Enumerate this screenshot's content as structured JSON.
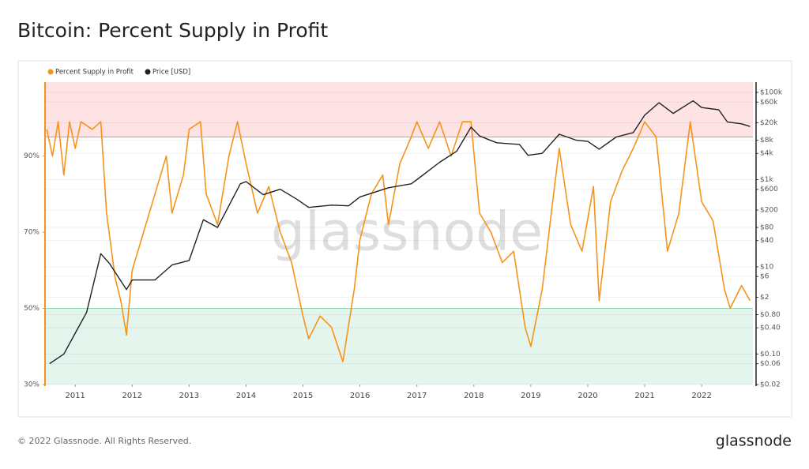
{
  "chart_data": {
    "type": "line",
    "title": "Bitcoin: Percent Supply in Profit",
    "footer": "© 2022 Glassnode. All Rights Reserved.",
    "brand": "glassnode",
    "watermark": "glassnode",
    "xlim": [
      2010.47,
      2022.9
    ],
    "xticks": [
      2011,
      2012,
      2013,
      2014,
      2015,
      2016,
      2017,
      2018,
      2019,
      2020,
      2021,
      2022
    ],
    "ylim": [
      30,
      109.4
    ],
    "yticks": [
      {
        "value": 30,
        "label": "30%"
      },
      {
        "value": 50,
        "label": "50%"
      },
      {
        "value": 70,
        "label": "70%"
      },
      {
        "value": 90,
        "label": "90%"
      }
    ],
    "y2lim": [
      0.02,
      172000
    ],
    "y2scale": "log",
    "y2ticks": [
      {
        "value": 0.02,
        "label": "$0.02"
      },
      {
        "value": 0.06,
        "label": "$0.06"
      },
      {
        "value": 0.1,
        "label": "$0.10"
      },
      {
        "value": 0.4,
        "label": "$0.40"
      },
      {
        "value": 0.8,
        "label": "$0.80"
      },
      {
        "value": 2,
        "label": "$2"
      },
      {
        "value": 6,
        "label": "$6"
      },
      {
        "value": 10,
        "label": "$10"
      },
      {
        "value": 40,
        "label": "$40"
      },
      {
        "value": 80,
        "label": "$80"
      },
      {
        "value": 200,
        "label": "$200"
      },
      {
        "value": 600,
        "label": "$600"
      },
      {
        "value": 1000,
        "label": "$1k"
      },
      {
        "value": 4000,
        "label": "$4k"
      },
      {
        "value": 8000,
        "label": "$8k"
      },
      {
        "value": 20000,
        "label": "$20k"
      },
      {
        "value": 60000,
        "label": "$60k"
      },
      {
        "value": 100000,
        "label": "$100k"
      }
    ],
    "bands": [
      {
        "from": 95,
        "to": 109.4,
        "color": "#fde3e3",
        "edge": "#f08a8a"
      },
      {
        "from": 30,
        "to": 50,
        "color": "#e3f5ec",
        "edge": "#8fd3b0"
      }
    ],
    "grid": true,
    "legend": "top-left",
    "series": [
      {
        "name": "Percent Supply in Profit",
        "color": "#f7931a",
        "x": [
          2010.5,
          2010.6,
          2010.7,
          2010.8,
          2010.9,
          2011.0,
          2011.1,
          2011.3,
          2011.45,
          2011.55,
          2011.7,
          2011.8,
          2011.9,
          2012.0,
          2012.2,
          2012.4,
          2012.6,
          2012.7,
          2012.9,
          2013.0,
          2013.2,
          2013.3,
          2013.5,
          2013.7,
          2013.85,
          2014.0,
          2014.2,
          2014.4,
          2014.6,
          2014.8,
          2015.0,
          2015.1,
          2015.3,
          2015.5,
          2015.7,
          2015.9,
          2016.0,
          2016.2,
          2016.4,
          2016.5,
          2016.7,
          2016.9,
          2017.0,
          2017.2,
          2017.4,
          2017.6,
          2017.8,
          2017.95,
          2018.1,
          2018.3,
          2018.5,
          2018.7,
          2018.9,
          2019.0,
          2019.2,
          2019.4,
          2019.5,
          2019.7,
          2019.9,
          2020.1,
          2020.2,
          2020.4,
          2020.6,
          2020.8,
          2021.0,
          2021.2,
          2021.4,
          2021.6,
          2021.8,
          2022.0,
          2022.2,
          2022.4,
          2022.5,
          2022.7,
          2022.85
        ],
        "values": [
          97,
          90,
          99,
          85,
          99,
          92,
          99,
          97,
          99,
          75,
          58,
          52,
          43,
          60,
          70,
          80,
          90,
          75,
          85,
          97,
          99,
          80,
          72,
          90,
          99,
          88,
          75,
          82,
          70,
          62,
          48,
          42,
          48,
          45,
          36,
          55,
          68,
          80,
          85,
          72,
          88,
          95,
          99,
          92,
          99,
          90,
          99,
          99,
          75,
          70,
          62,
          65,
          45,
          40,
          55,
          80,
          92,
          72,
          65,
          82,
          52,
          78,
          86,
          92,
          99,
          95,
          65,
          75,
          99,
          78,
          73,
          55,
          50,
          56,
          52
        ]
      },
      {
        "name": "Price [USD]",
        "color": "#222222",
        "axis": "y2",
        "x": [
          2010.55,
          2010.8,
          2011.0,
          2011.2,
          2011.45,
          2011.6,
          2011.9,
          2012.0,
          2012.4,
          2012.7,
          2013.0,
          2013.25,
          2013.5,
          2013.9,
          2014.0,
          2014.3,
          2014.6,
          2014.9,
          2015.1,
          2015.5,
          2015.8,
          2016.0,
          2016.5,
          2016.9,
          2017.0,
          2017.4,
          2017.7,
          2017.95,
          2018.1,
          2018.4,
          2018.8,
          2018.95,
          2019.2,
          2019.5,
          2019.8,
          2020.0,
          2020.2,
          2020.5,
          2020.8,
          2021.0,
          2021.25,
          2021.5,
          2021.85,
          2022.0,
          2022.3,
          2022.45,
          2022.7,
          2022.85
        ],
        "values": [
          0.06,
          0.1,
          0.3,
          0.9,
          20,
          12,
          3,
          5,
          5,
          11,
          14,
          120,
          80,
          800,
          900,
          450,
          600,
          350,
          230,
          260,
          250,
          400,
          650,
          800,
          1000,
          2500,
          4500,
          16000,
          10000,
          7000,
          6400,
          3600,
          4000,
          11000,
          8000,
          7500,
          5000,
          9500,
          12000,
          30000,
          58000,
          33000,
          64000,
          45000,
          40000,
          21000,
          19000,
          16500
        ]
      }
    ]
  }
}
